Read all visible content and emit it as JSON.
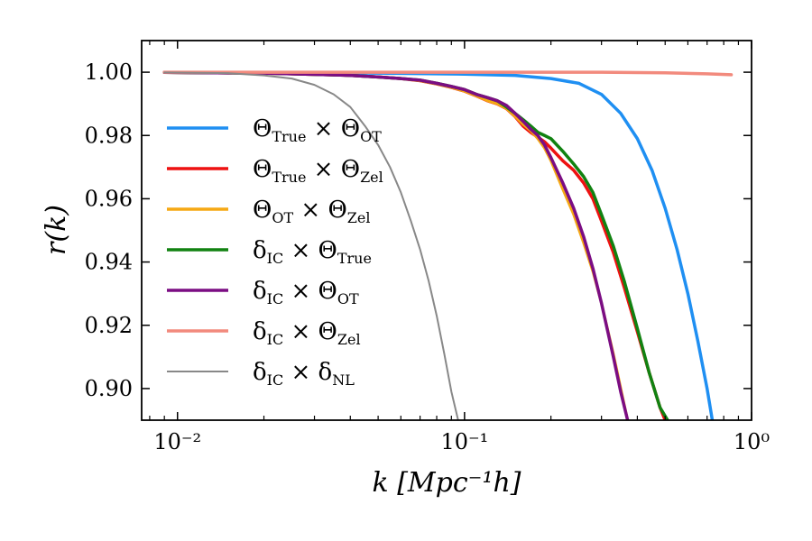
{
  "chart_data": {
    "type": "line",
    "xlabel": "k [Mpc⁻¹h]",
    "ylabel": "r(k)",
    "xscale": "log",
    "xlim": [
      0.0075,
      1.0
    ],
    "ylim": [
      0.89,
      1.01
    ],
    "grid": false,
    "legend_position": "center-left",
    "x_ticks": [
      {
        "value": 0.01,
        "label": "10⁻²"
      },
      {
        "value": 0.1,
        "label": "10⁻¹"
      },
      {
        "value": 1.0,
        "label": "10⁰"
      }
    ],
    "y_ticks": [
      {
        "value": 1.0,
        "label": "1.00"
      },
      {
        "value": 0.98,
        "label": "0.98"
      },
      {
        "value": 0.96,
        "label": "0.96"
      },
      {
        "value": 0.94,
        "label": "0.94"
      },
      {
        "value": 0.92,
        "label": "0.92"
      },
      {
        "value": 0.9,
        "label": "0.90"
      }
    ],
    "series": [
      {
        "name": "Θ_True × Θ_OT",
        "sym1": "Θ",
        "sub1": "True",
        "sym2": "Θ",
        "sub2": "OT",
        "color": "#1f8ff2",
        "width": 3.5,
        "points": [
          [
            0.009,
            0.99995
          ],
          [
            0.02,
            0.9999
          ],
          [
            0.05,
            0.9997
          ],
          [
            0.1,
            0.9994
          ],
          [
            0.15,
            0.999
          ],
          [
            0.2,
            0.998
          ],
          [
            0.25,
            0.9965
          ],
          [
            0.3,
            0.993
          ],
          [
            0.35,
            0.987
          ],
          [
            0.4,
            0.979
          ],
          [
            0.45,
            0.969
          ],
          [
            0.5,
            0.957
          ],
          [
            0.55,
            0.944
          ],
          [
            0.6,
            0.93
          ],
          [
            0.65,
            0.915
          ],
          [
            0.7,
            0.9
          ],
          [
            0.73,
            0.89
          ]
        ]
      },
      {
        "name": "Θ_True × Θ_Zel",
        "sym1": "Θ",
        "sub1": "True",
        "sym2": "Θ",
        "sub2": "Zel",
        "color": "#ee1111",
        "width": 3.5,
        "points": [
          [
            0.009,
            0.99995
          ],
          [
            0.02,
            0.9997
          ],
          [
            0.03,
            0.9993
          ],
          [
            0.04,
            0.999
          ],
          [
            0.05,
            0.9985
          ],
          [
            0.06,
            0.998
          ],
          [
            0.07,
            0.9973
          ],
          [
            0.08,
            0.9963
          ],
          [
            0.09,
            0.9952
          ],
          [
            0.1,
            0.994
          ],
          [
            0.11,
            0.9925
          ],
          [
            0.12,
            0.991
          ],
          [
            0.13,
            0.99
          ],
          [
            0.14,
            0.9885
          ],
          [
            0.15,
            0.986
          ],
          [
            0.16,
            0.983
          ],
          [
            0.17,
            0.981
          ],
          [
            0.18,
            0.9795
          ],
          [
            0.19,
            0.978
          ],
          [
            0.2,
            0.976
          ],
          [
            0.22,
            0.972
          ],
          [
            0.24,
            0.969
          ],
          [
            0.26,
            0.965
          ],
          [
            0.28,
            0.96
          ],
          [
            0.3,
            0.953
          ],
          [
            0.33,
            0.943
          ],
          [
            0.36,
            0.932
          ],
          [
            0.4,
            0.918
          ],
          [
            0.44,
            0.905
          ],
          [
            0.48,
            0.894
          ],
          [
            0.5,
            0.89
          ]
        ]
      },
      {
        "name": "Θ_OT × Θ_Zel",
        "sym1": "Θ",
        "sub1": "OT",
        "sym2": "Θ",
        "sub2": "Zel",
        "color": "#f5a814",
        "width": 3.0,
        "points": [
          [
            0.009,
            0.99995
          ],
          [
            0.02,
            0.9997
          ],
          [
            0.03,
            0.9993
          ],
          [
            0.04,
            0.999
          ],
          [
            0.05,
            0.9985
          ],
          [
            0.06,
            0.998
          ],
          [
            0.07,
            0.9973
          ],
          [
            0.08,
            0.9963
          ],
          [
            0.09,
            0.9952
          ],
          [
            0.1,
            0.994
          ],
          [
            0.11,
            0.9925
          ],
          [
            0.12,
            0.991
          ],
          [
            0.13,
            0.99
          ],
          [
            0.14,
            0.9885
          ],
          [
            0.15,
            0.986
          ],
          [
            0.16,
            0.9835
          ],
          [
            0.17,
            0.9815
          ],
          [
            0.18,
            0.979
          ],
          [
            0.19,
            0.976
          ],
          [
            0.2,
            0.972
          ],
          [
            0.22,
            0.963
          ],
          [
            0.24,
            0.955
          ],
          [
            0.26,
            0.946
          ],
          [
            0.28,
            0.937
          ],
          [
            0.3,
            0.927
          ],
          [
            0.33,
            0.911
          ],
          [
            0.36,
            0.895
          ],
          [
            0.37,
            0.89
          ]
        ]
      },
      {
        "name": "δ_IC × Θ_True",
        "sym1": "δ",
        "sub1": "IC",
        "sym2": "Θ",
        "sub2": "True",
        "color": "#118211",
        "width": 3.5,
        "points": [
          [
            0.009,
            0.99995
          ],
          [
            0.02,
            0.9997
          ],
          [
            0.03,
            0.9993
          ],
          [
            0.04,
            0.999
          ],
          [
            0.05,
            0.9985
          ],
          [
            0.06,
            0.998
          ],
          [
            0.07,
            0.9975
          ],
          [
            0.08,
            0.9965
          ],
          [
            0.09,
            0.9955
          ],
          [
            0.1,
            0.9945
          ],
          [
            0.11,
            0.993
          ],
          [
            0.12,
            0.992
          ],
          [
            0.13,
            0.991
          ],
          [
            0.14,
            0.989
          ],
          [
            0.15,
            0.987
          ],
          [
            0.16,
            0.985
          ],
          [
            0.17,
            0.983
          ],
          [
            0.18,
            0.981
          ],
          [
            0.19,
            0.98
          ],
          [
            0.2,
            0.979
          ],
          [
            0.22,
            0.975
          ],
          [
            0.24,
            0.971
          ],
          [
            0.26,
            0.967
          ],
          [
            0.28,
            0.962
          ],
          [
            0.3,
            0.955
          ],
          [
            0.33,
            0.945
          ],
          [
            0.36,
            0.934
          ],
          [
            0.4,
            0.919
          ],
          [
            0.44,
            0.905
          ],
          [
            0.48,
            0.894
          ],
          [
            0.51,
            0.89
          ]
        ]
      },
      {
        "name": "δ_IC × Θ_OT",
        "sym1": "δ",
        "sub1": "IC",
        "sym2": "Θ",
        "sub2": "OT",
        "color": "#7b0d83",
        "width": 3.5,
        "points": [
          [
            0.009,
            0.99995
          ],
          [
            0.02,
            0.9997
          ],
          [
            0.03,
            0.9993
          ],
          [
            0.04,
            0.999
          ],
          [
            0.05,
            0.9985
          ],
          [
            0.06,
            0.998
          ],
          [
            0.07,
            0.9975
          ],
          [
            0.08,
            0.9965
          ],
          [
            0.09,
            0.9955
          ],
          [
            0.1,
            0.9945
          ],
          [
            0.11,
            0.993
          ],
          [
            0.12,
            0.992
          ],
          [
            0.13,
            0.991
          ],
          [
            0.14,
            0.9895
          ],
          [
            0.15,
            0.987
          ],
          [
            0.16,
            0.9845
          ],
          [
            0.17,
            0.982
          ],
          [
            0.18,
            0.98
          ],
          [
            0.19,
            0.977
          ],
          [
            0.2,
            0.973
          ],
          [
            0.22,
            0.965
          ],
          [
            0.24,
            0.957
          ],
          [
            0.26,
            0.948
          ],
          [
            0.28,
            0.938
          ],
          [
            0.3,
            0.927
          ],
          [
            0.33,
            0.91
          ],
          [
            0.35,
            0.899
          ],
          [
            0.37,
            0.89
          ]
        ]
      },
      {
        "name": "δ_IC × Θ_Zel",
        "sym1": "δ",
        "sub1": "IC",
        "sym2": "Θ",
        "sub2": "Zel",
        "color": "#f28a7d",
        "width": 3.5,
        "points": [
          [
            0.009,
            1.0
          ],
          [
            0.05,
            1.0
          ],
          [
            0.1,
            1.0
          ],
          [
            0.2,
            1.0
          ],
          [
            0.3,
            1.0
          ],
          [
            0.5,
            0.9998
          ],
          [
            0.7,
            0.9995
          ],
          [
            0.85,
            0.9992
          ]
        ]
      },
      {
        "name": "δ_IC × δ_NL",
        "sym1": "δ",
        "sub1": "IC",
        "sym2": "δ",
        "sub2": "NL",
        "color": "#888888",
        "width": 2.0,
        "points": [
          [
            0.009,
            0.9999
          ],
          [
            0.015,
            0.9997
          ],
          [
            0.02,
            0.999
          ],
          [
            0.025,
            0.998
          ],
          [
            0.03,
            0.996
          ],
          [
            0.035,
            0.993
          ],
          [
            0.04,
            0.989
          ],
          [
            0.045,
            0.983
          ],
          [
            0.05,
            0.977
          ],
          [
            0.055,
            0.97
          ],
          [
            0.06,
            0.962
          ],
          [
            0.065,
            0.953
          ],
          [
            0.07,
            0.944
          ],
          [
            0.075,
            0.934
          ],
          [
            0.08,
            0.923
          ],
          [
            0.085,
            0.911
          ],
          [
            0.09,
            0.899
          ],
          [
            0.095,
            0.89
          ]
        ]
      }
    ]
  }
}
